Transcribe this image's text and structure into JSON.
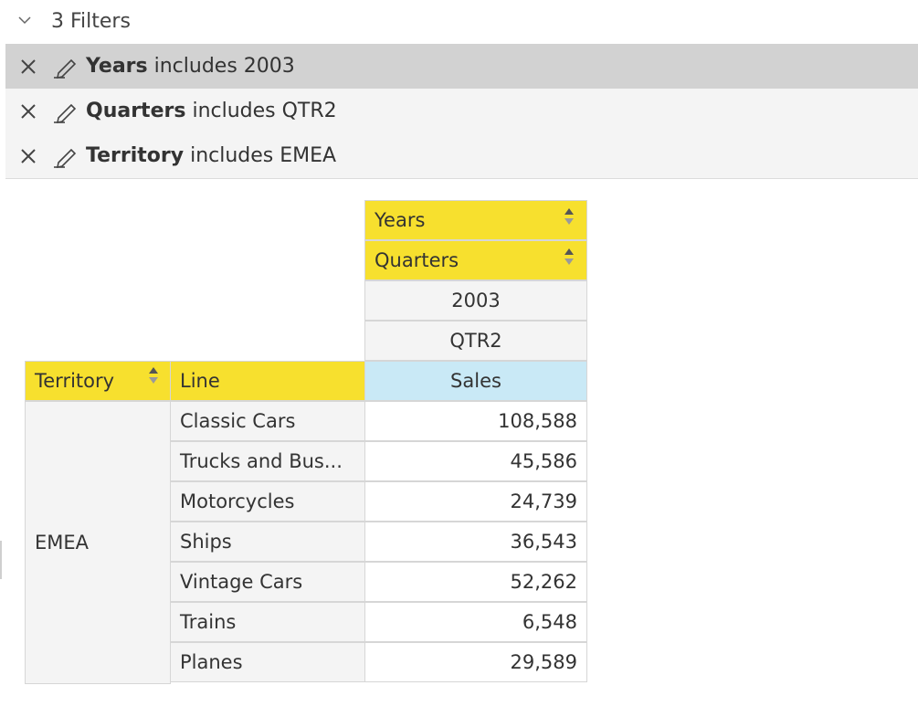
{
  "filters": {
    "summary": "3 Filters",
    "items": [
      {
        "field": "Years",
        "rest": "includes 2003"
      },
      {
        "field": "Quarters",
        "rest": "includes QTR2"
      },
      {
        "field": "Territory",
        "rest": "includes EMEA"
      }
    ]
  },
  "pivot": {
    "col_fields": [
      "Years",
      "Quarters"
    ],
    "col_values": {
      "year": "2003",
      "quarter": "QTR2"
    },
    "row_fields": [
      "Territory",
      "Line"
    ],
    "measure": "Sales",
    "territory": "EMEA",
    "rows": [
      {
        "line": "Classic Cars",
        "sales": "108,588"
      },
      {
        "line": "Trucks and Bus...",
        "sales": "45,586"
      },
      {
        "line": "Motorcycles",
        "sales": "24,739"
      },
      {
        "line": "Ships",
        "sales": "36,543"
      },
      {
        "line": "Vintage Cars",
        "sales": "52,262"
      },
      {
        "line": "Trains",
        "sales": "6,548"
      },
      {
        "line": "Planes",
        "sales": "29,589"
      }
    ]
  },
  "colors": {
    "field_yellow": "#f7e02e",
    "measure_blue": "#c9e9f6",
    "selected_filter": "#d2d2d2"
  }
}
